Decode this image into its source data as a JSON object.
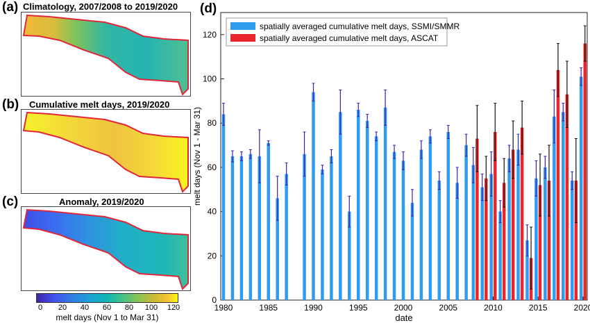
{
  "panels": {
    "a": {
      "label": "(a)",
      "title": "Climatology, 2007/2008 to 2019/2020"
    },
    "b": {
      "label": "(b)",
      "title": "Cumulative melt days, 2019/2020"
    },
    "c": {
      "label": "(c)",
      "title": "Anomaly, 2019/2020"
    },
    "d": {
      "label": "(d)"
    }
  },
  "colorbar": {
    "ticks": [
      "0",
      "20",
      "40",
      "60",
      "80",
      "100",
      "120"
    ],
    "label": "melt days (Nov 1 to Mar 31)"
  },
  "colors": {
    "ssmi": "#2f9cf0",
    "ascat": "#e8262b",
    "error_ssmi": "#3a1fb0",
    "error_ascat": "#111111",
    "outline": "#e0263a"
  },
  "chart_data": {
    "type": "bar",
    "xlabel": "date",
    "ylabel": "melt days (Nov 1 - Mar 31)",
    "xlim": [
      1980,
      2020
    ],
    "ylim": [
      0,
      130
    ],
    "xticks": [
      "1980",
      "1985",
      "1990",
      "1995",
      "2000",
      "2005",
      "2010",
      "2015",
      "2020"
    ],
    "yticks": [
      "0",
      "20",
      "40",
      "60",
      "80",
      "100",
      "120"
    ],
    "legend_position": "top-left",
    "series": [
      {
        "name": "spatially averaged cumulative melt days, SSMI/SMMR",
        "x": [
          1980,
          1981,
          1982,
          1983,
          1984,
          1985,
          1986,
          1987,
          1989,
          1990,
          1991,
          1992,
          1993,
          1994,
          1995,
          1996,
          1997,
          1998,
          1999,
          2000,
          2001,
          2002,
          2003,
          2004,
          2005,
          2006,
          2007,
          2008,
          2009,
          2010,
          2011,
          2012,
          2013,
          2014,
          2015,
          2016,
          2017,
          2018,
          2019,
          2020
        ],
        "values": [
          84,
          65,
          65,
          66,
          65,
          71,
          46,
          57,
          66,
          94,
          59,
          65,
          85,
          40,
          86,
          81,
          74,
          87,
          67,
          63,
          44,
          68,
          74,
          54,
          76,
          53,
          70,
          61,
          51,
          57,
          40,
          64,
          68,
          27,
          55,
          60,
          83,
          85,
          54,
          101
        ],
        "errors": [
          5,
          2.5,
          2,
          2,
          12,
          1,
          10,
          5,
          10,
          4,
          2,
          3,
          10,
          7,
          3,
          3,
          2,
          8,
          3,
          4,
          6,
          4,
          3,
          4,
          3,
          7,
          5,
          8,
          6,
          10,
          5,
          6,
          7,
          7,
          8,
          5,
          12,
          4,
          4,
          4
        ]
      },
      {
        "name": "spatially averaged cumulative melt days, ASCAT",
        "x": [
          2008,
          2009,
          2010,
          2011,
          2012,
          2013,
          2014,
          2015,
          2016,
          2017,
          2018,
          2019,
          2020
        ],
        "values": [
          73,
          55,
          76,
          53,
          68,
          78,
          19,
          52,
          54,
          104,
          93,
          54,
          116
        ],
        "errors": [
          15,
          10,
          13,
          11,
          13,
          12,
          14,
          14,
          16,
          12,
          15,
          19,
          8
        ]
      }
    ]
  }
}
